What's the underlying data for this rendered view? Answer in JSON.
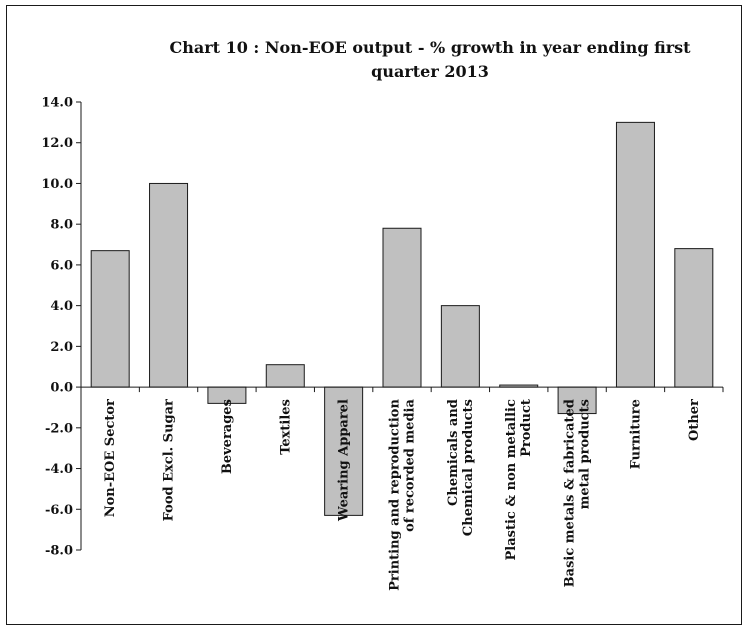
{
  "chart_data": {
    "type": "bar",
    "title": "Chart 10 : Non-EOE output - % growth in year ending first quarter 2013",
    "xlabel": "",
    "ylabel": "",
    "ylim": [
      -8.0,
      14.0
    ],
    "ytick_step": 2.0,
    "grid": false,
    "legend": "none",
    "categories": [
      [
        "Non-EOE Sector"
      ],
      [
        "Food Excl. Sugar"
      ],
      [
        "Beverages"
      ],
      [
        "Textiles"
      ],
      [
        "Wearing Apparel"
      ],
      [
        "Printing and reproduction",
        "of recorded media"
      ],
      [
        "Chemicals and",
        "Chemical products"
      ],
      [
        "Plastic & non metallic",
        "Product"
      ],
      [
        "Basic metals & fabricated",
        "metal products"
      ],
      [
        "Furniture"
      ],
      [
        "Other"
      ]
    ],
    "values": [
      6.7,
      10.0,
      -0.8,
      1.1,
      -6.3,
      7.8,
      4.0,
      0.1,
      -1.3,
      13.0,
      6.8
    ],
    "bar_color": "#c0c0c0",
    "bar_stroke": "#1a1a1a"
  }
}
